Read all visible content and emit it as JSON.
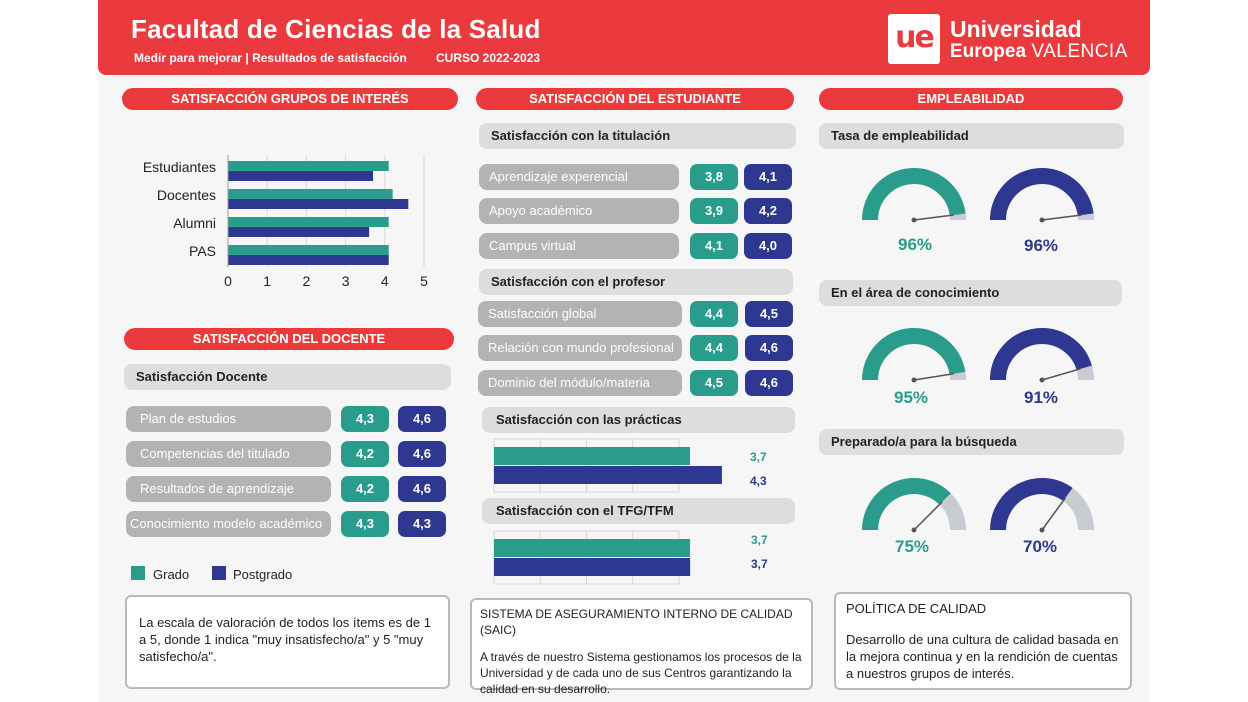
{
  "header": {
    "title": "Facultad de Ciencias de la Salud",
    "subtitle": "Medir para mejorar | Resultados de satisfacción",
    "year": "CURSO 2022-2023",
    "logo_mark": "ue",
    "logo_line1": "Universidad",
    "logo_line2a": "Europea",
    "logo_line2b": "VALENCIA"
  },
  "colors": {
    "brand_red": "#ea3a3d",
    "grado": "#2a9c8b",
    "postgrado": "#2e3890",
    "grey": "#b3b2b4"
  },
  "grupos": {
    "title": "SATISFACCIÓN GRUPOS DE INTERÉS",
    "chart_data": {
      "type": "bar",
      "orientation": "horizontal",
      "categories": [
        "Estudiantes",
        "Docentes",
        "Alumni",
        "PAS"
      ],
      "series": [
        {
          "name": "Grado",
          "values": [
            4.1,
            4.2,
            4.1,
            4.1
          ]
        },
        {
          "name": "Postgrado",
          "values": [
            3.7,
            4.6,
            3.6,
            4.1
          ]
        }
      ],
      "xlim": [
        0,
        5
      ],
      "xticks": [
        "0",
        "1",
        "2",
        "3",
        "4",
        "5"
      ]
    }
  },
  "docente": {
    "title": "SATISFACCIÓN DEL DOCENTE",
    "sub": "Satisfacción Docente",
    "rows": [
      {
        "label": "Plan de estudios",
        "grado": "4,3",
        "postgrado": "4,6"
      },
      {
        "label": "Competencias del titulado",
        "grado": "4,2",
        "postgrado": "4,6"
      },
      {
        "label": "Resultados de aprendizaje",
        "grado": "4,2",
        "postgrado": "4,6"
      },
      {
        "label": "Conocimiento modelo académico",
        "grado": "4,3",
        "postgrado": "4,3"
      }
    ],
    "legend": {
      "grado": "Grado",
      "postgrado": "Postgrado"
    },
    "note": "La escala de valoración de todos los ítems es de 1 a 5, donde 1 indica \"muy insatisfecho/a\" y 5 \"muy satisfecho/a\"."
  },
  "estudiante": {
    "title": "SATISFACCIÓN DEL ESTUDIANTE",
    "titulacion": {
      "sub": "Satisfacción con la titulación",
      "rows": [
        {
          "label": "Aprendizaje experencial",
          "grado": "3,8",
          "postgrado": "4,1"
        },
        {
          "label": "Apoyo académico",
          "grado": "3,9",
          "postgrado": "4,2"
        },
        {
          "label": "Campus virtual",
          "grado": "4,1",
          "postgrado": "4,0"
        }
      ]
    },
    "profesor": {
      "sub": "Satisfacción con el profesor",
      "rows": [
        {
          "label": "Satisfacción global",
          "grado": "4,4",
          "postgrado": "4,5"
        },
        {
          "label": "Relación con mundo profesional",
          "grado": "4,4",
          "postgrado": "4,6"
        },
        {
          "label": "Dominio del módulo/materia",
          "grado": "4,5",
          "postgrado": "4,6"
        }
      ]
    },
    "practicas": {
      "sub": "Satisfacción con las prácticas",
      "grado": 3.7,
      "postgrado": 4.3,
      "grado_label": "3,7",
      "postgrado_label": "4,3"
    },
    "tfg": {
      "sub": "Satisfacción con el TFG/TFM",
      "grado": 3.7,
      "postgrado": 3.7,
      "grado_label": "3,7",
      "postgrado_label": "3,7"
    },
    "saic_title": "SISTEMA DE ASEGURAMIENTO INTERNO DE CALIDAD (SAIC)",
    "saic_text": "A través de nuestro Sistema gestionamos los procesos de la Universidad y de cada uno de sus Centros garantizando la calidad en su desarrollo."
  },
  "empleabilidad": {
    "title": "EMPLEABILIDAD",
    "gauges": [
      {
        "sub": "Tasa de empleabilidad",
        "grado": 96,
        "postgrado": 96,
        "grado_label": "96%",
        "postgrado_label": "96%"
      },
      {
        "sub": "En el área de conocimiento",
        "grado": 95,
        "postgrado": 91,
        "grado_label": "95%",
        "postgrado_label": "91%"
      },
      {
        "sub": "Preparado/a para la búsqueda",
        "grado": 75,
        "postgrado": 70,
        "grado_label": "75%",
        "postgrado_label": "70%"
      }
    ],
    "politica_title": "POLÍTICA DE CALIDAD",
    "politica_text": "Desarrollo de una cultura de calidad basada en la mejora continua y en la rendición de cuentas a nuestros grupos de interés."
  }
}
